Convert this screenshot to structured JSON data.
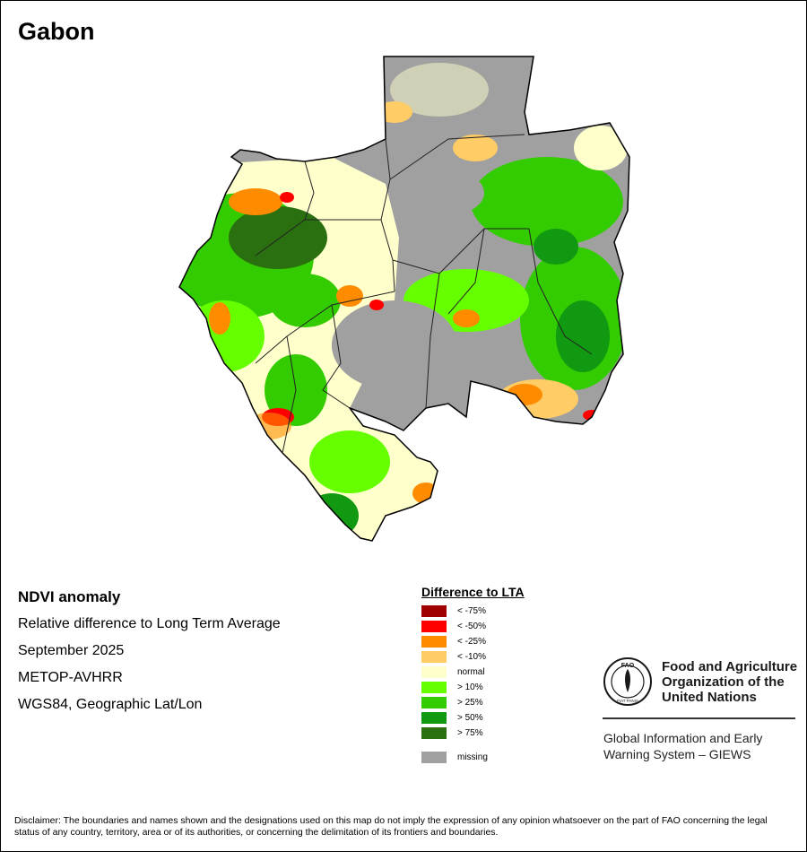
{
  "title": "Gabon",
  "metadata": {
    "heading": "NDVI anomaly",
    "subtitle": "Relative difference to Long Term Average",
    "period": "September 2025",
    "sensor": "METOP-AVHRR",
    "projection": "WGS84, Geographic Lat/Lon"
  },
  "legend": {
    "title": "Difference to LTA",
    "items": [
      {
        "label": "< -75%",
        "color": "#a00000"
      },
      {
        "label": "< -50%",
        "color": "#ff0000"
      },
      {
        "label": "< -25%",
        "color": "#ff8c00"
      },
      {
        "label": "< -10%",
        "color": "#ffcc66"
      },
      {
        "label": "normal",
        "color": "#ffffcc"
      },
      {
        "label": "> 10%",
        "color": "#66ff00"
      },
      {
        "label": "> 25%",
        "color": "#33cc00"
      },
      {
        "label": "> 50%",
        "color": "#119911"
      },
      {
        "label": "> 75%",
        "color": "#2a7010"
      }
    ],
    "missing": {
      "label": "missing",
      "color": "#a0a0a0"
    }
  },
  "organization": {
    "name_lines": [
      "Food and Agriculture",
      "Organization of the",
      "United Nations"
    ],
    "logo_text": "FAO",
    "logo_motto": "FIAT PANIS",
    "program_lines": [
      "Global Information and Early",
      "Warning System – GIEWS"
    ]
  },
  "disclaimer": "Disclaimer: The boundaries and names shown and the designations used on this map do not imply the expression of any opinion whatsoever on the part of FAO concerning the legal status of any country, territory, area or of its authorities, or concerning the delimitation of its frontiers and boundaries."
}
